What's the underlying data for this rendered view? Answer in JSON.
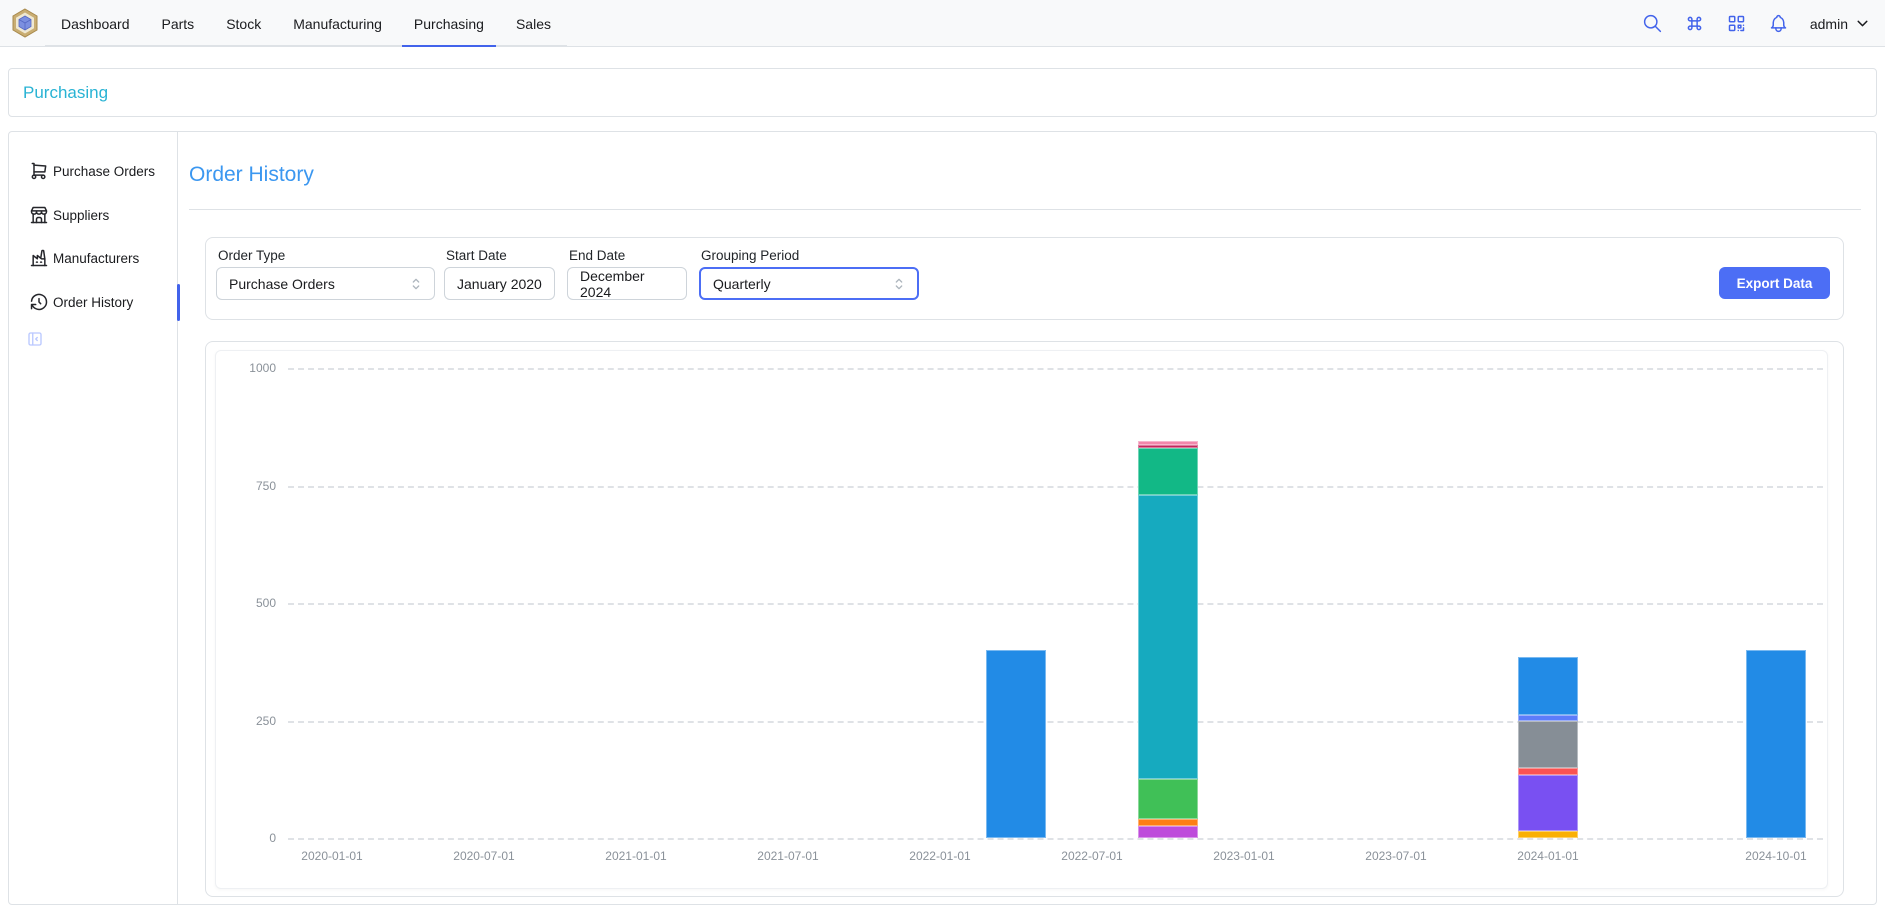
{
  "navbar": {
    "tabs": [
      {
        "label": "Dashboard"
      },
      {
        "label": "Parts"
      },
      {
        "label": "Stock"
      },
      {
        "label": "Manufacturing"
      },
      {
        "label": "Purchasing"
      },
      {
        "label": "Sales"
      }
    ],
    "active_tab": "Purchasing",
    "user": "admin",
    "accent_color": "#4263eb"
  },
  "breadcrumb": {
    "label": "Purchasing"
  },
  "sidebar": {
    "items": [
      {
        "label": "Purchase Orders",
        "icon": "shopping-cart"
      },
      {
        "label": "Suppliers",
        "icon": "building-store"
      },
      {
        "label": "Manufacturers",
        "icon": "building-factory"
      },
      {
        "label": "Order History",
        "icon": "history"
      }
    ],
    "active_item": "Order History"
  },
  "page": {
    "title": "Order History"
  },
  "filters": {
    "order_type": {
      "label": "Order Type",
      "value": "Purchase Orders"
    },
    "start_date": {
      "label": "Start Date",
      "value": "January 2020"
    },
    "end_date": {
      "label": "End Date",
      "value": "December 2024"
    },
    "grouping_period": {
      "label": "Grouping Period",
      "value": "Quarterly"
    },
    "export_label": "Export Data",
    "export_color": "#4c6ef5"
  },
  "chart_data": {
    "type": "bar",
    "stacked": true,
    "title": "",
    "xlabel": "",
    "ylabel": "",
    "legend": "none",
    "grid": "horizontal-dashed",
    "x_axis": {
      "scale": "time",
      "tick_labels": [
        "2020-01-01",
        "2020-07-01",
        "2021-01-01",
        "2021-07-01",
        "2022-01-01",
        "2022-07-01",
        "2023-01-01",
        "2023-07-01",
        "2024-01-01",
        "2024-10-01"
      ]
    },
    "y_axis": {
      "ticks": [
        0,
        250,
        500,
        750,
        1000
      ],
      "range": [
        0,
        1050
      ]
    },
    "bars": [
      {
        "x": "2022-04-01",
        "total": 400,
        "segments": [
          {
            "color": "#228be6",
            "value": 400
          }
        ]
      },
      {
        "x": "2022-10-01",
        "total": 844,
        "segments": [
          {
            "color": "#be4bdb",
            "value": 25
          },
          {
            "color": "#fd7e14",
            "value": 15
          },
          {
            "color": "#40c057",
            "value": 85
          },
          {
            "color": "#16aabf",
            "value": 605
          },
          {
            "color": "#12b886",
            "value": 100
          },
          {
            "color": "#c2255c",
            "value": 6
          },
          {
            "color": "#f186ab",
            "value": 8
          }
        ]
      },
      {
        "x": "2024-01-01",
        "total": 386,
        "segments": [
          {
            "color": "#fab005",
            "value": 15
          },
          {
            "color": "#7950f2",
            "value": 120
          },
          {
            "color": "#fa5252",
            "value": 13
          },
          {
            "color": "#868e96",
            "value": 100
          },
          {
            "color": "#5c7cfa",
            "value": 13
          },
          {
            "color": "#228be6",
            "value": 125
          }
        ]
      },
      {
        "x": "2024-10-01",
        "total": 400,
        "segments": [
          {
            "color": "#228be6",
            "value": 400
          }
        ]
      }
    ]
  }
}
